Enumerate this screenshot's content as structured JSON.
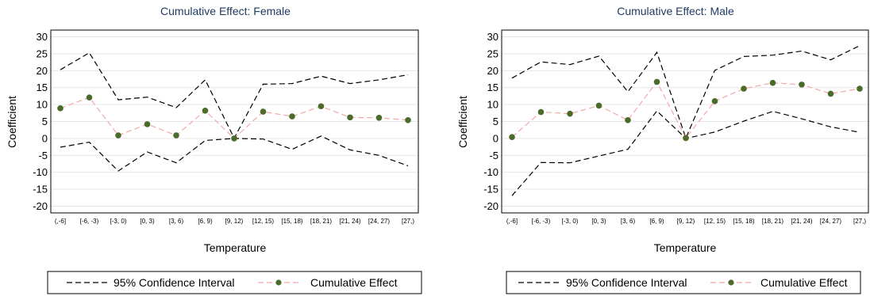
{
  "chart_data": [
    {
      "type": "line",
      "title": "Cumulative Effect: Female",
      "xlabel": "Temperature",
      "ylabel": "Coefficient",
      "categories": [
        "(,-6]",
        "[-6, -3)",
        "[-3, 0)",
        "[0, 3)",
        "[3, 6)",
        "[6, 9)",
        "[9, 12)",
        "[12, 15)",
        "[15, 18)",
        "[18, 21)",
        "[21, 24)",
        "[24, 27)",
        "[27,)"
      ],
      "yticks": [
        "30",
        "25",
        "20",
        "15",
        "10",
        "5",
        "0",
        "-5",
        "-10",
        "-15",
        "-20"
      ],
      "ylim": [
        -22,
        32
      ],
      "grid": true,
      "series": [
        {
          "name": "95% Confidence Interval",
          "role": "upper",
          "values": [
            20.3,
            25.3,
            11.4,
            12.2,
            9.1,
            17.3,
            0.1,
            16.0,
            16.2,
            18.4,
            16.2,
            17.3,
            18.8
          ]
        },
        {
          "name": "95% Confidence Interval",
          "role": "lower",
          "values": [
            -2.6,
            -1.1,
            -9.6,
            -4.0,
            -7.2,
            -0.6,
            0.0,
            -0.2,
            -3.2,
            0.7,
            -3.4,
            -5.0,
            -8.1
          ]
        },
        {
          "name": "Cumulative Effect",
          "role": "point",
          "values": [
            8.9,
            12.1,
            0.9,
            4.2,
            0.9,
            8.2,
            0.0,
            7.9,
            6.5,
            9.5,
            6.2,
            6.1,
            5.4
          ]
        }
      ],
      "legend": {
        "position": "bottom",
        "items": [
          "95% Confidence Interval",
          "Cumulative Effect"
        ]
      }
    },
    {
      "type": "line",
      "title": "Cumulative Effect: Male",
      "xlabel": "Temperature",
      "ylabel": "Coefficient",
      "categories": [
        "(,-6]",
        "[-6, -3)",
        "[-3, 0)",
        "[0, 3)",
        "[3, 6)",
        "[6, 9)",
        "[9, 12)",
        "[12, 15)",
        "[15, 18)",
        "[18, 21)",
        "[21, 24)",
        "[24, 27)",
        "[27,)"
      ],
      "yticks": [
        "30",
        "25",
        "20",
        "15",
        "10",
        "5",
        "0",
        "-5",
        "-10",
        "-15",
        "-20"
      ],
      "ylim": [
        -22,
        32
      ],
      "grid": true,
      "series": [
        {
          "name": "95% Confidence Interval",
          "role": "upper",
          "values": [
            17.8,
            22.6,
            21.8,
            24.3,
            13.8,
            25.4,
            0.1,
            20.1,
            24.2,
            24.6,
            25.8,
            23.2,
            27.4
          ]
        },
        {
          "name": "95% Confidence Interval",
          "role": "lower",
          "values": [
            -16.9,
            -7.1,
            -7.2,
            -5.2,
            -3.2,
            8.1,
            0.0,
            1.9,
            5.1,
            8.0,
            5.8,
            3.4,
            1.8
          ]
        },
        {
          "name": "Cumulative Effect",
          "role": "point",
          "values": [
            0.4,
            7.8,
            7.3,
            9.7,
            5.4,
            16.7,
            0.1,
            11.0,
            14.7,
            16.4,
            15.9,
            13.2,
            14.7
          ]
        }
      ],
      "legend": {
        "position": "bottom",
        "items": [
          "95% Confidence Interval",
          "Cumulative Effect"
        ]
      }
    }
  ],
  "colors": {
    "ci_line": "#000000",
    "effect_line": "#f2a7a7",
    "effect_marker": "#4a6b2a",
    "grid": "#e6e6e6",
    "title": "#1e3a5f"
  }
}
